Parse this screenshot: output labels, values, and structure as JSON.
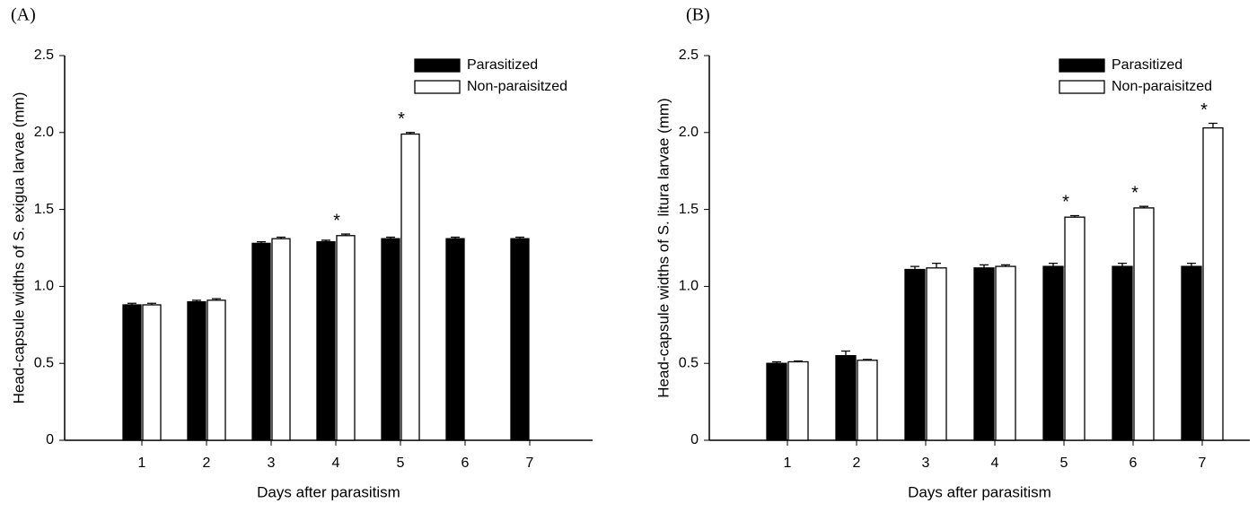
{
  "chart_data": [
    {
      "type": "bar",
      "panel_label": "(A)",
      "ylabel": "Head-capsule widths of S. exigua larvae (mm)",
      "xlabel": "Days after parasitism",
      "categories": [
        "1",
        "2",
        "3",
        "4",
        "5",
        "6",
        "7"
      ],
      "series": [
        {
          "name": "Parasitized",
          "color": "#000000",
          "values": [
            0.88,
            0.9,
            1.28,
            1.29,
            1.31,
            1.31,
            1.31
          ],
          "errors": [
            0.01,
            0.01,
            0.01,
            0.01,
            0.01,
            0.01,
            0.01
          ]
        },
        {
          "name": "Non-paraisitzed",
          "color": "#ffffff",
          "values": [
            0.88,
            0.91,
            1.31,
            1.33,
            1.99,
            null,
            null
          ],
          "errors": [
            0.01,
            0.01,
            0.01,
            0.01,
            0.01,
            null,
            null
          ]
        }
      ],
      "annotations": [
        {
          "text": "*",
          "category": "4"
        },
        {
          "text": "*",
          "category": "5"
        }
      ],
      "ylim": [
        0,
        2.5
      ],
      "yticks": [
        0,
        0.5,
        {
          "value": 1,
          "label": "1.0"
        },
        1.5,
        {
          "value": 2,
          "label": "2.0"
        },
        2.5
      ],
      "legend": "upper right"
    },
    {
      "type": "bar",
      "panel_label": "(B)",
      "ylabel": "Head-capsule widths of S. litura larvae (mm)",
      "xlabel": "Days after parasitism",
      "categories": [
        "1",
        "2",
        "3",
        "4",
        "5",
        "6",
        "7"
      ],
      "series": [
        {
          "name": "Parasitized",
          "color": "#000000",
          "values": [
            0.5,
            0.55,
            1.11,
            1.12,
            1.13,
            1.13,
            1.13
          ],
          "errors": [
            0.01,
            0.03,
            0.02,
            0.02,
            0.02,
            0.02,
            0.02
          ]
        },
        {
          "name": "Non-paraisitzed",
          "color": "#ffffff",
          "values": [
            0.51,
            0.52,
            1.12,
            1.13,
            1.45,
            1.51,
            2.03
          ],
          "errors": [
            0.005,
            0.005,
            0.03,
            0.01,
            0.01,
            0.01,
            0.03
          ]
        }
      ],
      "annotations": [
        {
          "text": "*",
          "category": "5"
        },
        {
          "text": "*",
          "category": "6"
        },
        {
          "text": "*",
          "category": "7"
        }
      ],
      "ylim": [
        0,
        2.5
      ],
      "yticks": [
        0,
        0.5,
        {
          "value": 1,
          "label": "1.0"
        },
        1.5,
        {
          "value": 2,
          "label": "2.0"
        },
        2.5
      ],
      "legend": "upper right"
    }
  ]
}
